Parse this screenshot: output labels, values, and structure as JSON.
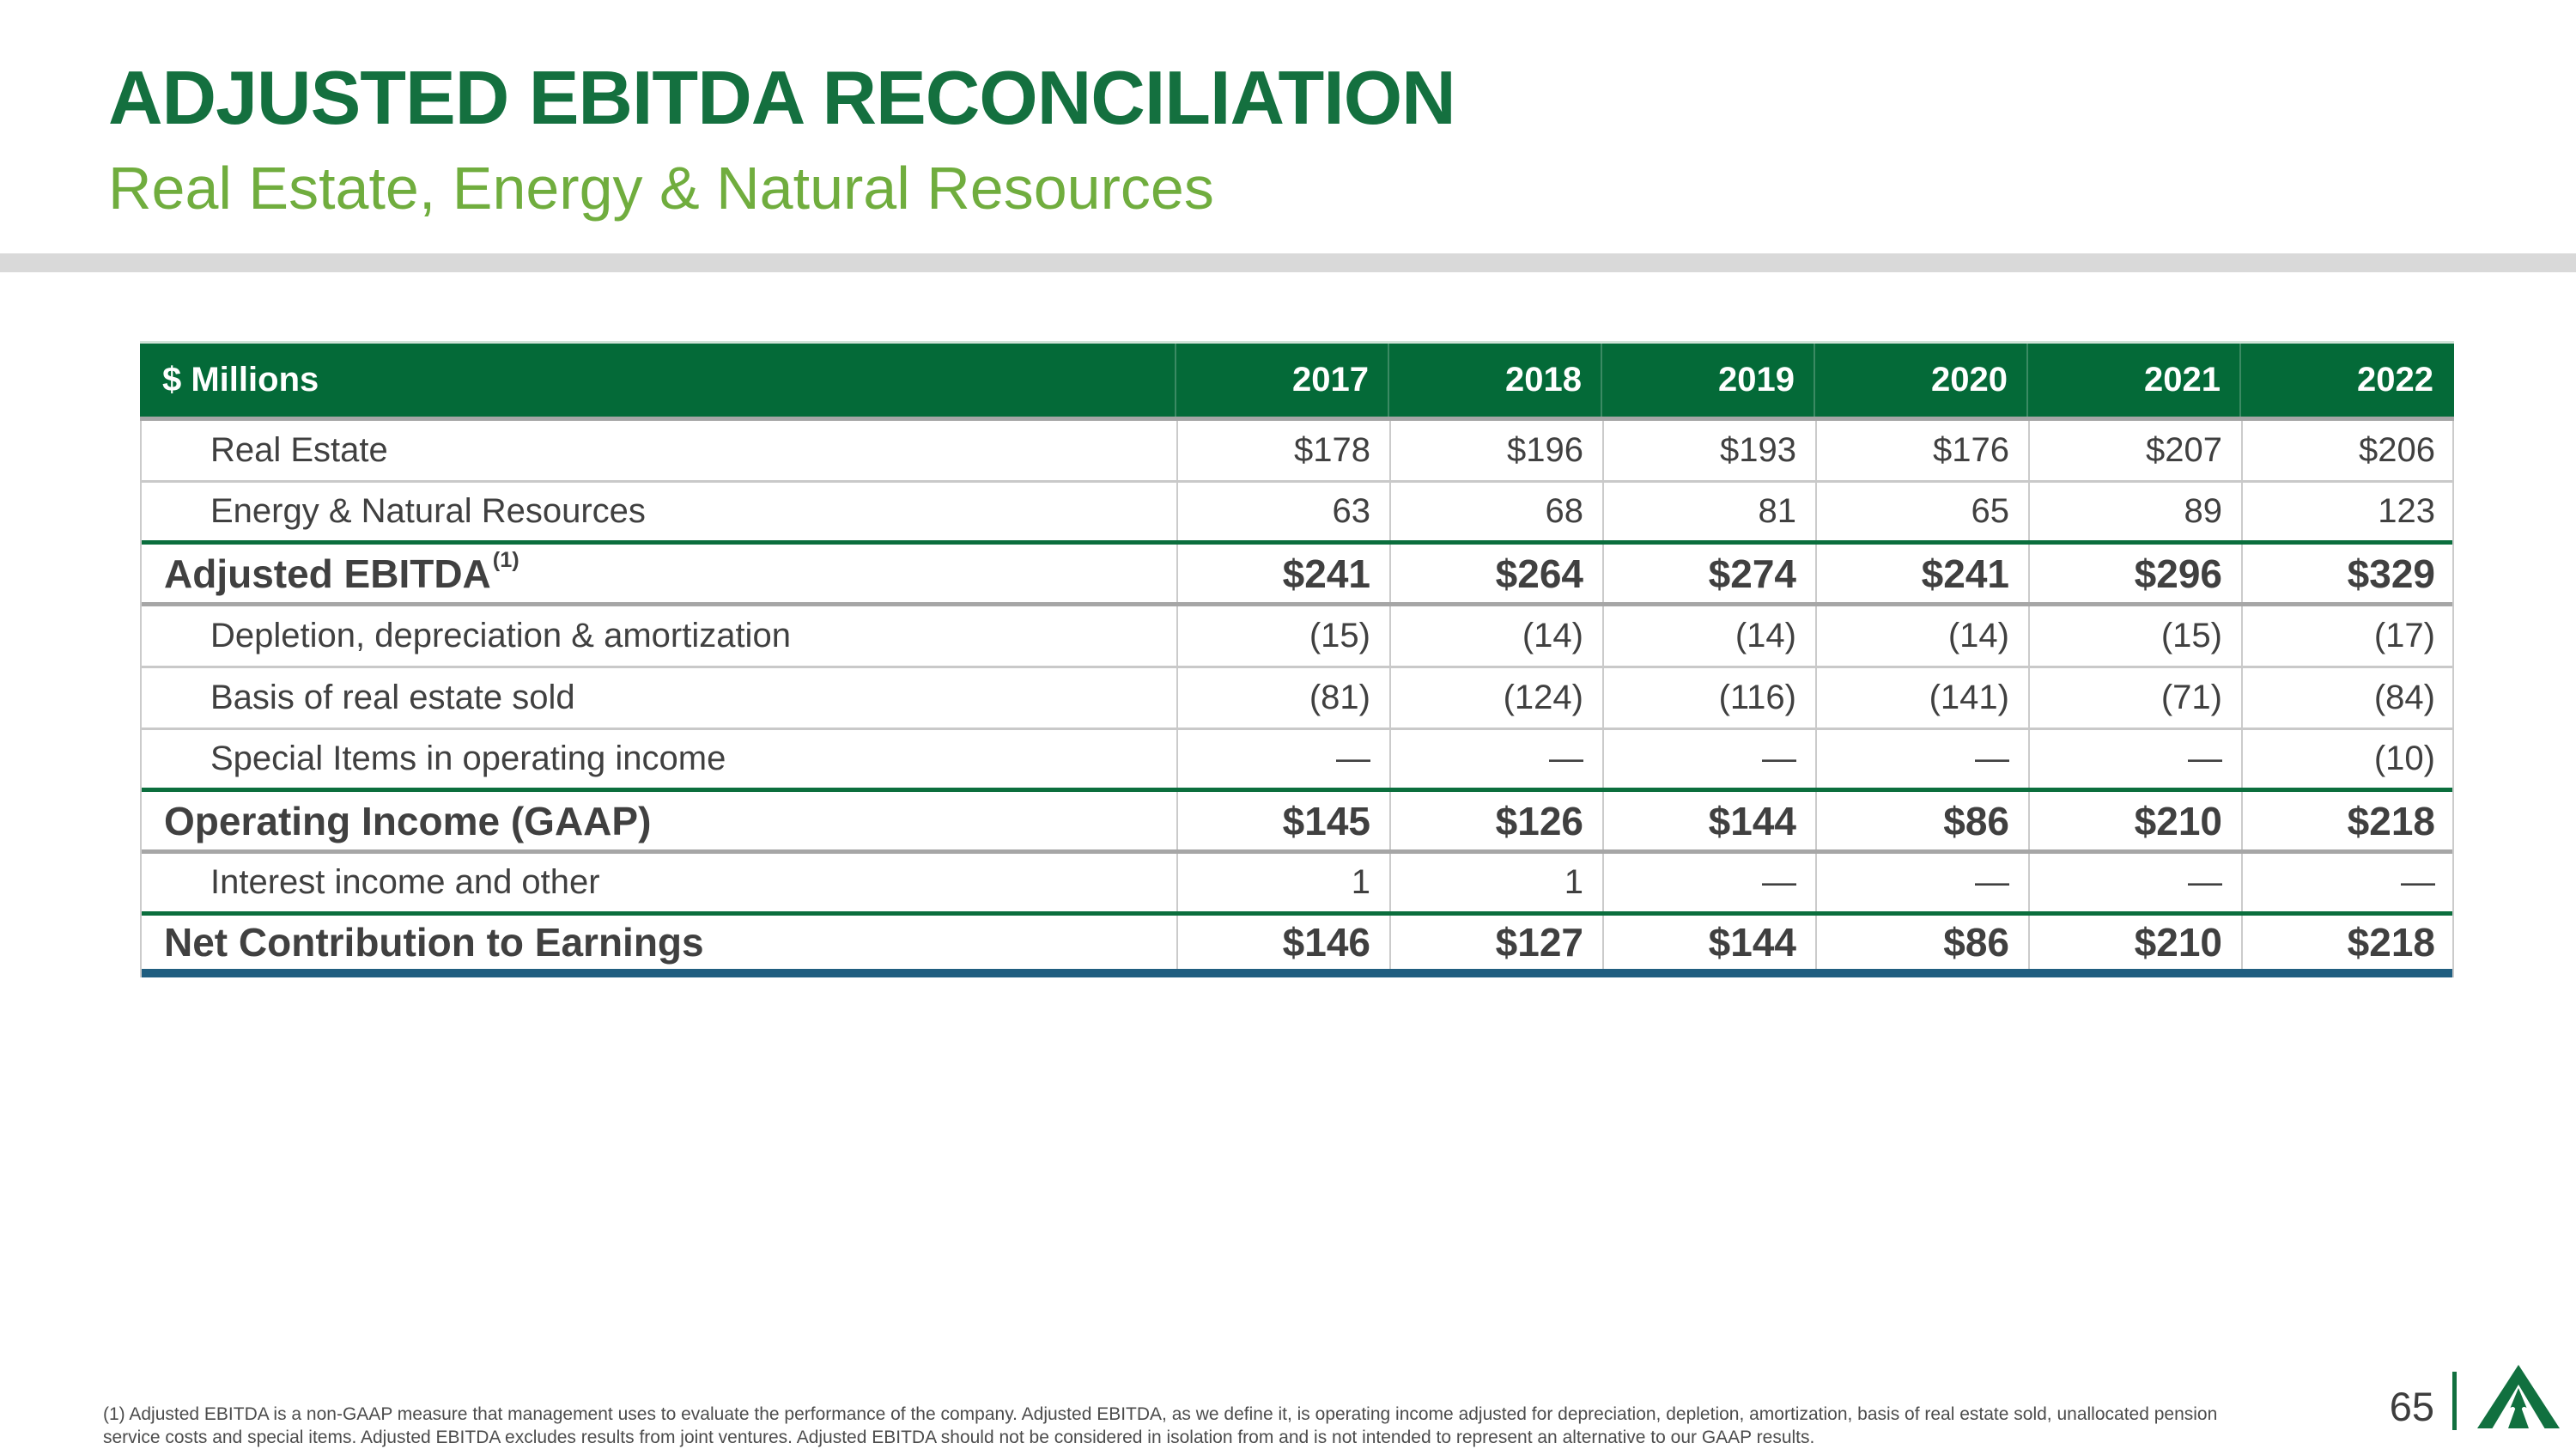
{
  "header": {
    "title": "ADJUSTED EBITDA RECONCILIATION",
    "subtitle": "Real Estate, Energy & Natural Resources"
  },
  "table": {
    "unit_label": "$ Millions",
    "years": [
      "2017",
      "2018",
      "2019",
      "2020",
      "2021",
      "2022"
    ],
    "rows": [
      {
        "label": "Real Estate",
        "superscript": "",
        "values": [
          "$178",
          "$196",
          "$193",
          "$176",
          "$207",
          "$206"
        ],
        "emphasis": false,
        "indent": true,
        "divider": "thin"
      },
      {
        "label": "Energy & Natural Resources",
        "superscript": "",
        "values": [
          "63",
          "68",
          "81",
          "65",
          "89",
          "123"
        ],
        "emphasis": false,
        "indent": true,
        "divider": "green"
      },
      {
        "label": "Adjusted EBITDA",
        "superscript": "(1)",
        "values": [
          "$241",
          "$264",
          "$274",
          "$241",
          "$296",
          "$329"
        ],
        "emphasis": true,
        "indent": false,
        "divider": "gray-thick"
      },
      {
        "label": "Depletion, depreciation & amortization",
        "superscript": "",
        "values": [
          "(15)",
          "(14)",
          "(14)",
          "(14)",
          "(15)",
          "(17)"
        ],
        "emphasis": false,
        "indent": true,
        "divider": "thin"
      },
      {
        "label": "Basis of real estate sold",
        "superscript": "",
        "values": [
          "(81)",
          "(124)",
          "(116)",
          "(141)",
          "(71)",
          "(84)"
        ],
        "emphasis": false,
        "indent": true,
        "divider": "thin"
      },
      {
        "label": "Special Items in operating income",
        "superscript": "",
        "values": [
          "—",
          "—",
          "—",
          "—",
          "—",
          "(10)"
        ],
        "emphasis": false,
        "indent": true,
        "divider": "green"
      },
      {
        "label": "Operating Income (GAAP)",
        "superscript": "",
        "values": [
          "$145",
          "$126",
          "$144",
          "$86",
          "$210",
          "$218"
        ],
        "emphasis": true,
        "indent": false,
        "divider": "gray-thick"
      },
      {
        "label": "Interest income and other",
        "superscript": "",
        "values": [
          "1",
          "1",
          "—",
          "—",
          "—",
          "—"
        ],
        "emphasis": false,
        "indent": true,
        "divider": "green"
      },
      {
        "label": "Net Contribution to Earnings",
        "superscript": "",
        "values": [
          "$146",
          "$127",
          "$144",
          "$86",
          "$210",
          "$218"
        ],
        "emphasis": true,
        "indent": false,
        "divider": "blue"
      }
    ]
  },
  "footnote": {
    "lines": [
      "(1) Adjusted EBITDA is a non-GAAP measure that management uses to evaluate the performance of the company. Adjusted EBITDA, as we define it, is operating income adjusted for depreciation, depletion, amortization, basis of real estate sold, unallocated pension",
      "service costs and special items. Adjusted EBITDA excludes results from joint ventures. Adjusted EBITDA should not be considered in isolation from and is not intended to represent an alternative to our GAAP results."
    ]
  },
  "footer": {
    "page_number": "65"
  },
  "branding": {
    "logo_icon": "weyerhaeuser-triangle-tree-logo"
  },
  "colors": {
    "title_green": "#14703f",
    "subtitle_green": "#70ad3e",
    "header_green": "#046a38",
    "divider_gray": "#d9d9d9",
    "rule_green": "#0b6e3d",
    "rule_blue": "#205e80",
    "text_dark": "#404040",
    "logo_green": "#11703f"
  }
}
